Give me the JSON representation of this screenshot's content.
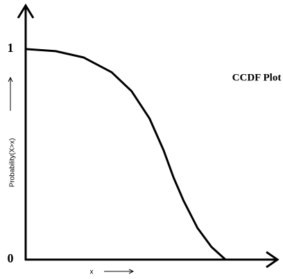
{
  "chart_data": {
    "type": "line",
    "title": "CCDF Plot",
    "xlabel": "x",
    "ylabel": "Probability(X>x)",
    "x": [
      0,
      0.15,
      0.29,
      0.43,
      0.53,
      0.62,
      0.69,
      0.74,
      0.79,
      0.86,
      0.93,
      1.0
    ],
    "values": [
      1.0,
      0.99,
      0.96,
      0.89,
      0.8,
      0.67,
      0.52,
      0.39,
      0.28,
      0.15,
      0.06,
      0.0
    ],
    "color": "#000000",
    "xlim": [
      0,
      1.26
    ],
    "ylim": [
      0,
      1.2
    ],
    "yticks": [
      0,
      1
    ],
    "grid": false
  }
}
